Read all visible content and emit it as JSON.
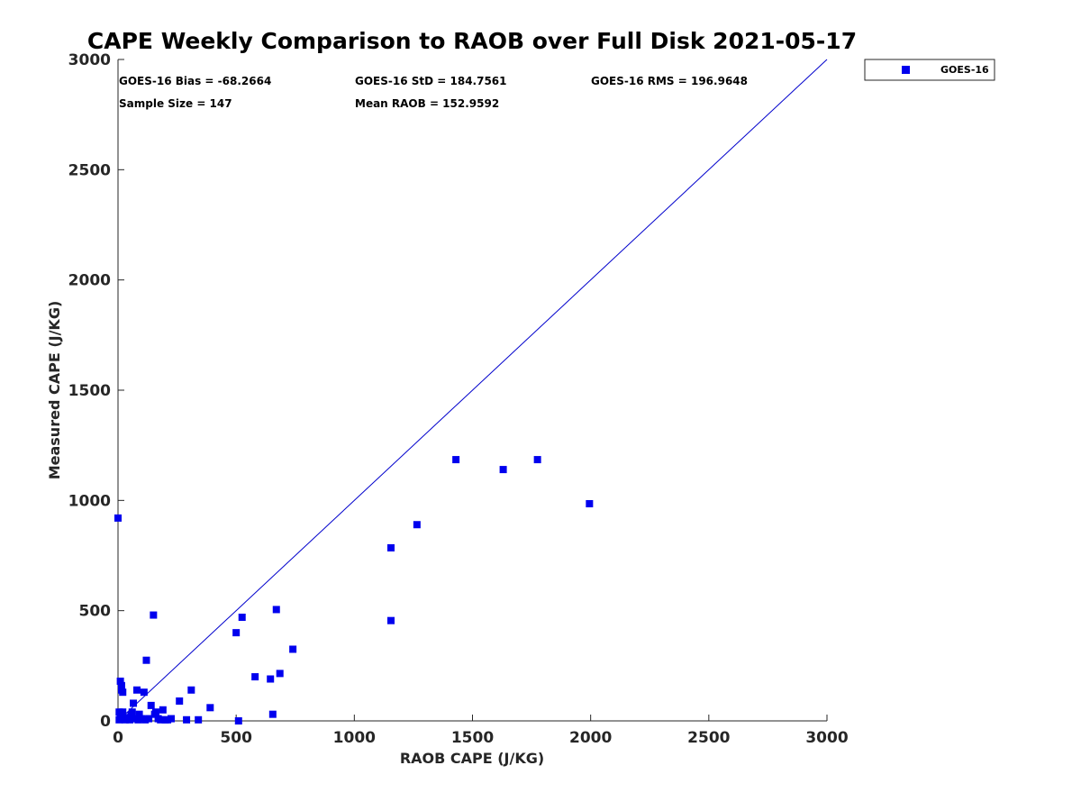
{
  "chart_data": {
    "type": "scatter",
    "title": "CAPE Weekly Comparison to RAOB over Full Disk 2021-05-17",
    "xlabel": "RAOB CAPE (J/KG)",
    "ylabel": "Measured CAPE (J/KG)",
    "xlim": [
      0,
      3000
    ],
    "ylim": [
      0,
      3000
    ],
    "xticks": [
      0,
      500,
      1000,
      1500,
      2000,
      2500,
      3000
    ],
    "yticks": [
      0,
      500,
      1000,
      1500,
      2000,
      2500,
      3000
    ],
    "grid": false,
    "legend_position": "outside-top-right",
    "reference_line": {
      "label": "1:1",
      "x": [
        0,
        3000
      ],
      "y": [
        0,
        3000
      ],
      "color": "#0000cc"
    },
    "stats": [
      "GOES-16 Bias = -68.2664",
      "GOES-16 StD = 184.7561",
      "GOES-16 RMS = 196.9648",
      "Sample Size = 147",
      "Mean RAOB = 152.9592"
    ],
    "series": [
      {
        "name": "GOES-16",
        "color": "#0000ee",
        "marker": "square",
        "points": [
          [
            0,
            920
          ],
          [
            10,
            180
          ],
          [
            15,
            160
          ],
          [
            15,
            140
          ],
          [
            20,
            130
          ],
          [
            5,
            40
          ],
          [
            20,
            40
          ],
          [
            10,
            20
          ],
          [
            25,
            10
          ],
          [
            30,
            5
          ],
          [
            5,
            5
          ],
          [
            40,
            15
          ],
          [
            50,
            5
          ],
          [
            55,
            25
          ],
          [
            60,
            40
          ],
          [
            65,
            80
          ],
          [
            70,
            10
          ],
          [
            80,
            140
          ],
          [
            85,
            5
          ],
          [
            90,
            30
          ],
          [
            100,
            10
          ],
          [
            110,
            130
          ],
          [
            115,
            5
          ],
          [
            120,
            275
          ],
          [
            130,
            10
          ],
          [
            140,
            70
          ],
          [
            150,
            480
          ],
          [
            155,
            30
          ],
          [
            160,
            40
          ],
          [
            170,
            10
          ],
          [
            180,
            5
          ],
          [
            190,
            50
          ],
          [
            200,
            5
          ],
          [
            210,
            5
          ],
          [
            225,
            10
          ],
          [
            260,
            90
          ],
          [
            290,
            5
          ],
          [
            310,
            140
          ],
          [
            340,
            5
          ],
          [
            390,
            60
          ],
          [
            500,
            400
          ],
          [
            510,
            0
          ],
          [
            525,
            470
          ],
          [
            580,
            200
          ],
          [
            645,
            190
          ],
          [
            655,
            30
          ],
          [
            670,
            505
          ],
          [
            685,
            215
          ],
          [
            740,
            325
          ],
          [
            1155,
            785
          ],
          [
            1155,
            455
          ],
          [
            1265,
            890
          ],
          [
            1430,
            1185
          ],
          [
            1630,
            1140
          ],
          [
            1775,
            1185
          ],
          [
            1995,
            985
          ]
        ]
      }
    ]
  }
}
